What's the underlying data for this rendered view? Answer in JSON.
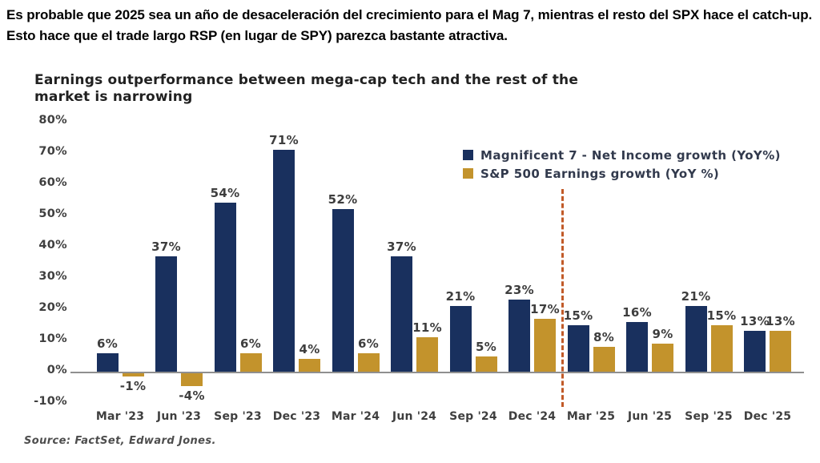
{
  "header": {
    "line1": "Es probable que 2025 sea un año de desaceleración del crecimiento para el Mag 7, mientras el resto del SPX hace el catch-up.",
    "line2": "Esto hace que el trade largo RSP (en lugar de SPY) parezca bastante atractiva."
  },
  "chart": {
    "title_line1": "Earnings outperformance between mega-cap tech and the rest of the",
    "title_line2": "market is narrowing",
    "source": "Source: FactSet, Edward Jones."
  },
  "chart_data": {
    "type": "bar",
    "title": "Earnings outperformance between mega-cap tech and the rest of the market is narrowing",
    "categories": [
      "Mar '23",
      "Jun '23",
      "Sep '23",
      "Dec '23",
      "Mar '24",
      "Jun '24",
      "Sep '24",
      "Dec '24",
      "Mar '25",
      "Jun '25",
      "Sep '25",
      "Dec '25"
    ],
    "series": [
      {
        "name": "Magnificent 7 - Net Income growth (YoY%)",
        "color": "#19305e",
        "values": [
          6,
          37,
          54,
          71,
          52,
          37,
          21,
          23,
          15,
          16,
          21,
          13
        ]
      },
      {
        "name": "S&P 500 Earnings growth (YoY %)",
        "color": "#c3932c",
        "values": [
          -1,
          -4,
          6,
          4,
          6,
          11,
          5,
          17,
          8,
          9,
          15,
          13
        ]
      }
    ],
    "xlabel": "",
    "ylabel": "",
    "ylim": [
      -10,
      80
    ],
    "yticks": [
      "80%",
      "70%",
      "60%",
      "50%",
      "40%",
      "30%",
      "20%",
      "10%",
      "0%",
      "-10%"
    ],
    "grid": false,
    "legend_position": "top-right",
    "annotations": [
      {
        "type": "vline-dashed",
        "between": [
          "Dec '24",
          "Mar '25"
        ],
        "color": "#c15a28"
      }
    ],
    "source": "Source: FactSet, Edward Jones."
  }
}
